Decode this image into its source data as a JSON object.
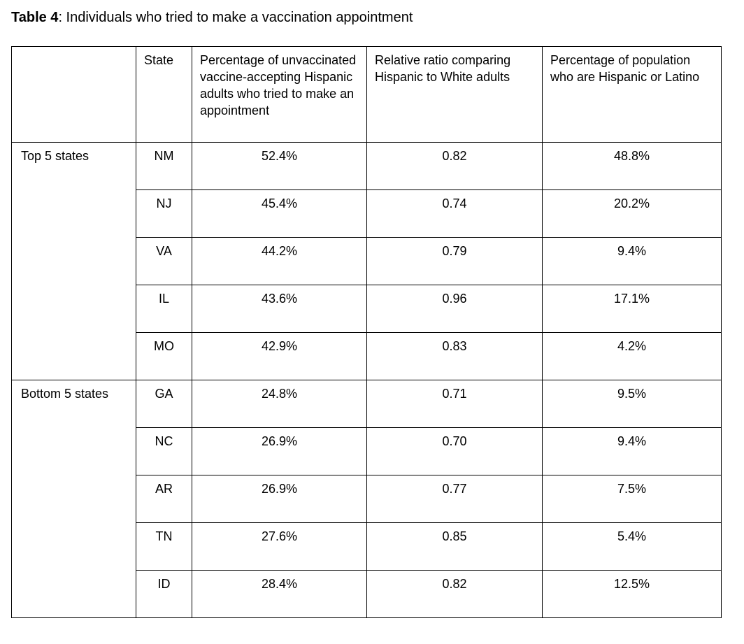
{
  "title": {
    "bold": "Table 4",
    "rest": ": Individuals who tried to make a vaccination appointment"
  },
  "table": {
    "headers": {
      "group": "",
      "state": "State",
      "pct": "Percentage of unvaccinated vaccine-accepting Hispanic adults who tried to make an appointment",
      "ratio": "Relative ratio comparing Hispanic to White adults",
      "pop": "Percentage of population who are Hispanic or Latino"
    },
    "groups": [
      {
        "label": "Top 5 states",
        "rows": [
          {
            "state": "NM",
            "pct": "52.4%",
            "ratio": "0.82",
            "pop": "48.8%"
          },
          {
            "state": "NJ",
            "pct": "45.4%",
            "ratio": "0.74",
            "pop": "20.2%"
          },
          {
            "state": "VA",
            "pct": "44.2%",
            "ratio": "0.79",
            "pop": "9.4%"
          },
          {
            "state": "IL",
            "pct": "43.6%",
            "ratio": "0.96",
            "pop": "17.1%"
          },
          {
            "state": "MO",
            "pct": "42.9%",
            "ratio": "0.83",
            "pop": "4.2%"
          }
        ]
      },
      {
        "label": "Bottom 5 states",
        "rows": [
          {
            "state": "GA",
            "pct": "24.8%",
            "ratio": "0.71",
            "pop": "9.5%"
          },
          {
            "state": "NC",
            "pct": "26.9%",
            "ratio": "0.70",
            "pop": "9.4%"
          },
          {
            "state": "AR",
            "pct": "26.9%",
            "ratio": "0.77",
            "pop": "7.5%"
          },
          {
            "state": "TN",
            "pct": "27.6%",
            "ratio": "0.85",
            "pop": "5.4%"
          },
          {
            "state": "ID",
            "pct": "28.4%",
            "ratio": "0.82",
            "pop": "12.5%"
          }
        ]
      }
    ]
  },
  "chart_data": {
    "type": "table",
    "title": "Table 4: Individuals who tried to make a vaccination appointment",
    "columns": [
      "Group",
      "State",
      "Percentage of unvaccinated vaccine-accepting Hispanic adults who tried to make an appointment",
      "Relative ratio comparing Hispanic to White adults",
      "Percentage of population who are Hispanic or Latino"
    ],
    "rows": [
      [
        "Top 5 states",
        "NM",
        "52.4%",
        "0.82",
        "48.8%"
      ],
      [
        "Top 5 states",
        "NJ",
        "45.4%",
        "0.74",
        "20.2%"
      ],
      [
        "Top 5 states",
        "VA",
        "44.2%",
        "0.79",
        "9.4%"
      ],
      [
        "Top 5 states",
        "IL",
        "43.6%",
        "0.96",
        "17.1%"
      ],
      [
        "Top 5 states",
        "MO",
        "42.9%",
        "0.83",
        "4.2%"
      ],
      [
        "Bottom 5 states",
        "GA",
        "24.8%",
        "0.71",
        "9.5%"
      ],
      [
        "Bottom 5 states",
        "NC",
        "26.9%",
        "0.70",
        "9.4%"
      ],
      [
        "Bottom 5 states",
        "AR",
        "26.9%",
        "0.77",
        "7.5%"
      ],
      [
        "Bottom 5 states",
        "TN",
        "27.6%",
        "0.85",
        "5.4%"
      ],
      [
        "Bottom 5 states",
        "ID",
        "28.4%",
        "0.82",
        "12.5%"
      ]
    ]
  }
}
